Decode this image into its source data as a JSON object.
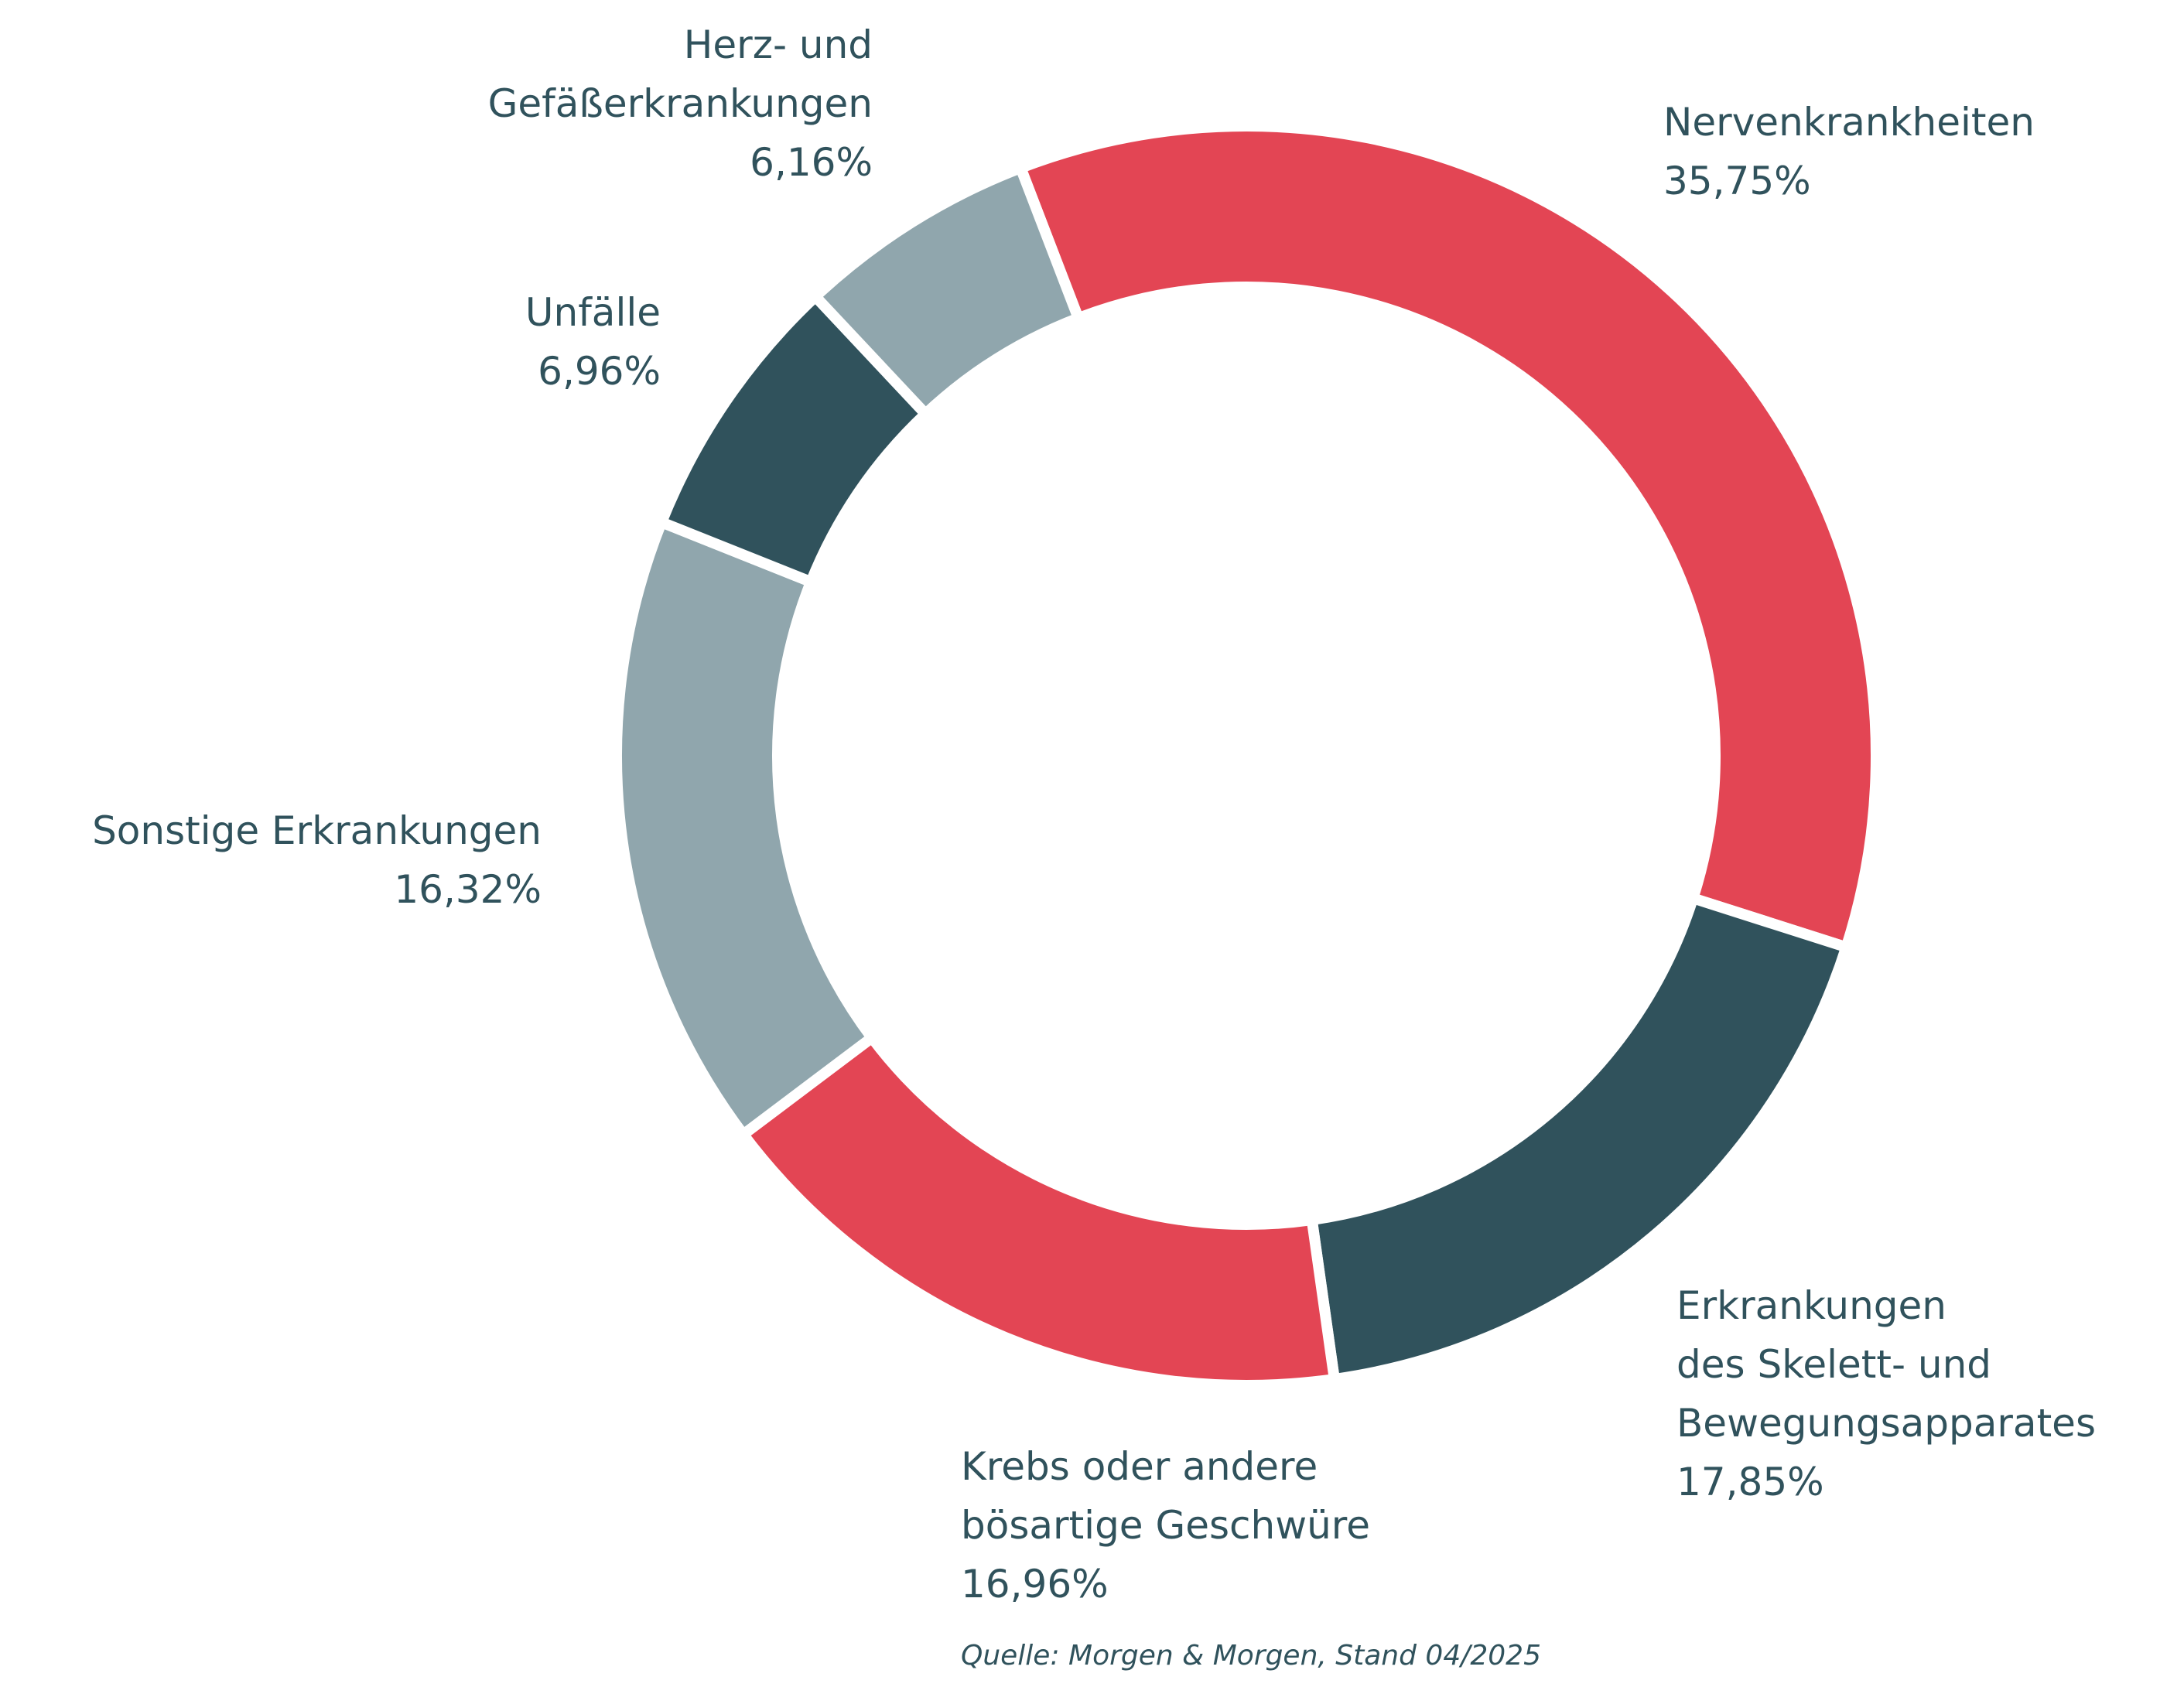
{
  "chart_data": {
    "type": "donut",
    "categories": [
      "Nervenkrankheiten",
      "Erkrankungen\ndes Skelett- und\nBewegungsapparates",
      "Krebs oder andere\nbösartige Geschwüre",
      "Sonstige Erkrankungen",
      "Unfälle",
      "Herz- und\nGefäßerkrankungen"
    ],
    "values": [
      35.75,
      17.85,
      16.96,
      16.32,
      6.96,
      6.16
    ],
    "value_labels": [
      "35,75%",
      "17,85%",
      "16,96%",
      "16,32%",
      "6,96%",
      "6,16%"
    ],
    "colors": [
      "#e34554",
      "#30525c",
      "#e34554",
      "#90a6ad",
      "#30525c",
      "#90a6ad"
    ],
    "source": "Quelle: Morgen & Morgen, Stand 04/2025"
  }
}
